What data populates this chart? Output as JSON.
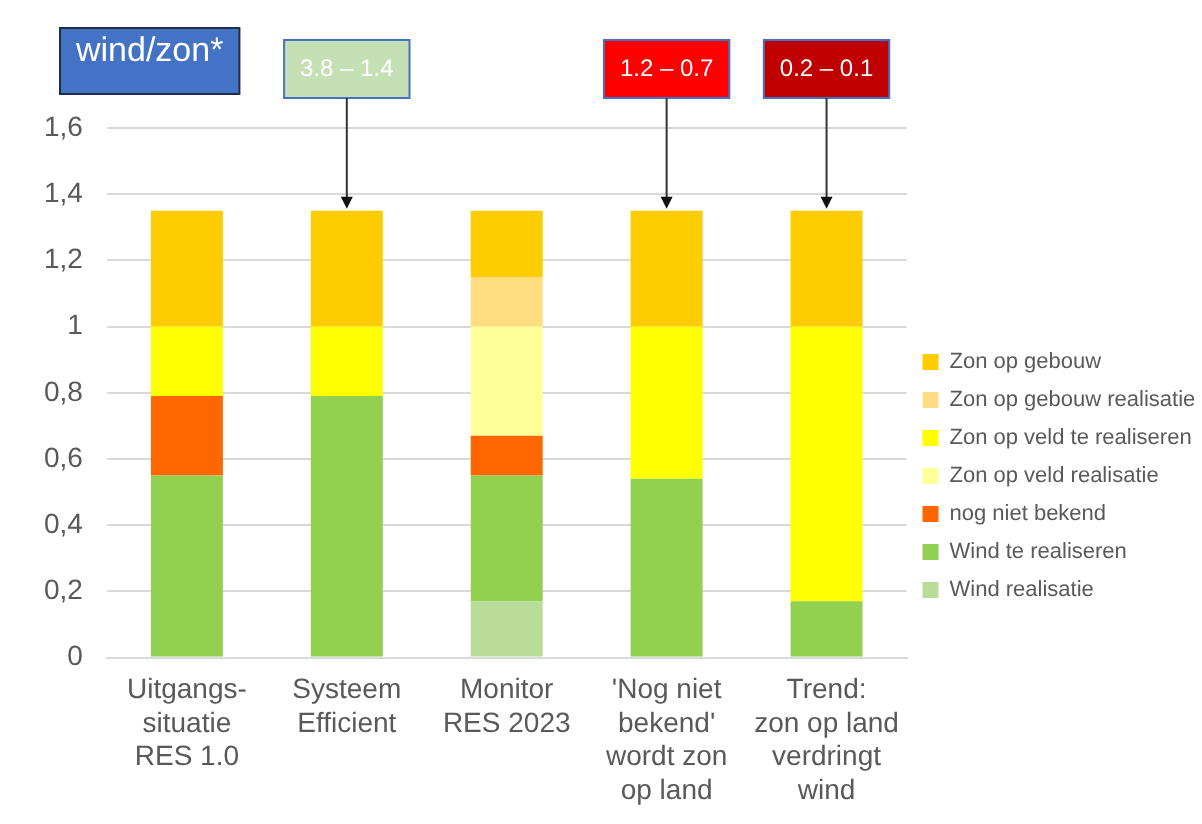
{
  "chart_data": {
    "type": "bar",
    "stacked": true,
    "categories": [
      "Uitgangs-\nsituatie\nRES 1.0",
      "Systeem\nEfficient",
      "Monitor\nRES 2023",
      "'Nog niet\nbekend'\nwordt zon\nop land",
      "Trend:\nzon op land\nverdringt\nwind"
    ],
    "series": [
      {
        "name": "Wind realisatie",
        "color": "#b9dd98",
        "values": [
          0,
          0,
          0.17,
          0,
          0
        ]
      },
      {
        "name": "Wind te realiseren",
        "color": "#92d050",
        "values": [
          0.55,
          0.79,
          0.38,
          0.54,
          0.17
        ]
      },
      {
        "name": "nog niet bekend",
        "color": "#ff6600",
        "values": [
          0.24,
          0,
          0.12,
          0,
          0
        ]
      },
      {
        "name": "Zon op veld realisatie",
        "color": "#ffff99",
        "values": [
          0,
          0,
          0.33,
          0,
          0
        ]
      },
      {
        "name": "Zon op veld te realiseren",
        "color": "#ffff00",
        "values": [
          0.21,
          0.21,
          0,
          0.46,
          0.83
        ]
      },
      {
        "name": "Zon op gebouw realisatie",
        "color": "#ffdd80",
        "values": [
          0,
          0,
          0.15,
          0,
          0
        ]
      },
      {
        "name": "Zon op gebouw",
        "color": "#ffcc00",
        "values": [
          0.35,
          0.35,
          0.2,
          0.35,
          0.35
        ]
      }
    ],
    "ylim": [
      0,
      1.6
    ],
    "yticks": [
      0,
      {
        "value": 0.2,
        "label": "0,2"
      },
      {
        "value": 0.4,
        "label": "0,4"
      },
      {
        "value": 0.6,
        "label": "0,6"
      },
      {
        "value": 0.8,
        "label": "0,8"
      },
      1,
      {
        "value": 1.2,
        "label": "1,2"
      },
      {
        "value": 1.4,
        "label": "1,4"
      },
      {
        "value": 1.6,
        "label": "1,6"
      }
    ],
    "grid": "y",
    "legend": "right",
    "annotations": [
      "wind/zon*",
      {
        "text": "3.8 – 1.4",
        "x": "Systeem\nEfficient",
        "y": 1.35
      },
      {
        "text": "1.2 – 0.7",
        "x": "'Nog niet\nbekend'\nwordt zon\nop land",
        "y": 1.35
      },
      {
        "text": "0.2 – 0.1",
        "x": "Trend:\nzon op land\nverdringt\nwind",
        "y": 1.35
      }
    ]
  }
}
